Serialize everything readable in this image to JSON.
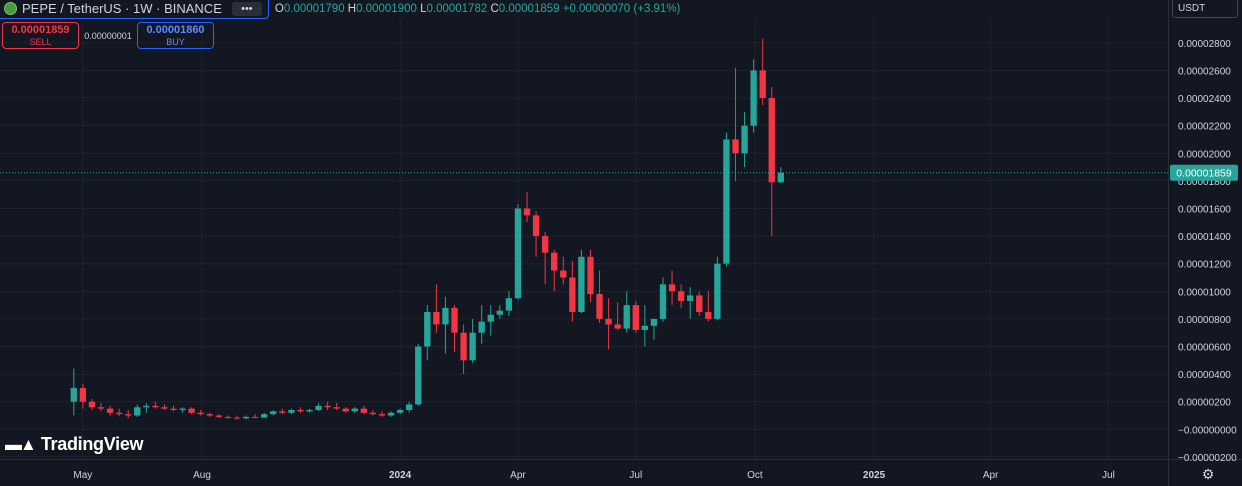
{
  "header": {
    "symbol": "PEPE / TetherUS · 1W · BINANCE",
    "ohlc": {
      "o_label": "O",
      "o_value": "0.00001790",
      "h_label": "H",
      "h_value": "0.00001900",
      "l_label": "L",
      "l_value": "0.00001782",
      "c_label": "C",
      "c_value": "0.00001859",
      "change": "+0.00000070 (+3.91%)"
    }
  },
  "trade": {
    "sell_price": "0.00001859",
    "sell_label": "SELL",
    "spread": "0.00000001",
    "buy_price": "0.00001860",
    "buy_label": "BUY"
  },
  "currency": "USDT",
  "branding": {
    "logo_text": "TradingView"
  },
  "colors": {
    "background": "#131722",
    "up": "#26a69a",
    "down": "#f23645",
    "grid": "#1e222d"
  },
  "chart_data": {
    "type": "candlestick",
    "current_price_label": "0.00001859",
    "y_tick_labels": [
      "0.00002800",
      "0.00002600",
      "0.00002400",
      "0.00002200",
      "0.00002000",
      "0.00001800",
      "0.00001600",
      "0.00001400",
      "0.00001200",
      "0.00001000",
      "0.00000800",
      "0.00000600",
      "0.00000400",
      "0.00000200",
      "−0.00000000",
      "−0.00000200"
    ],
    "y_ticks": [
      2.8e-05,
      2.6e-05,
      2.4e-05,
      2.2e-05,
      2e-05,
      1.8e-05,
      1.6e-05,
      1.4e-05,
      1.2e-05,
      1e-05,
      8e-06,
      6e-06,
      4e-06,
      2e-06,
      0,
      -2e-06
    ],
    "ylim": [
      -2.15e-06,
      2.98e-05
    ],
    "x_tick_labels": [
      {
        "label": "May",
        "date": "2023-05-01",
        "bold": false
      },
      {
        "label": "Aug",
        "date": "2023-08-01",
        "bold": false
      },
      {
        "label": "2024",
        "date": "2024-01-01",
        "bold": true
      },
      {
        "label": "Apr",
        "date": "2024-04-01",
        "bold": false
      },
      {
        "label": "Jul",
        "date": "2024-07-01",
        "bold": false
      },
      {
        "label": "Oct",
        "date": "2024-10-01",
        "bold": false
      },
      {
        "label": "2025",
        "date": "2025-01-01",
        "bold": true
      },
      {
        "label": "Apr",
        "date": "2025-04-01",
        "bold": false
      },
      {
        "label": "Jul",
        "date": "2025-07-01",
        "bold": false
      }
    ],
    "x_range": [
      "2023-02-26",
      "2025-08-16"
    ],
    "interval": "1W",
    "first_candle_date": "2023-04-24",
    "candles": [
      [
        2e-06,
        4.4e-06,
        1e-06,
        3e-06
      ],
      [
        3e-06,
        3.3e-06,
        1.5e-06,
        2e-06
      ],
      [
        2e-06,
        2.2e-06,
        1.4e-06,
        1.6e-06
      ],
      [
        1.6e-06,
        1.9e-06,
        1.3e-06,
        1.5e-06
      ],
      [
        1.5e-06,
        1.7e-06,
        1e-06,
        1.2e-06
      ],
      [
        1.2e-06,
        1.5e-06,
        9.5e-07,
        1.1e-06
      ],
      [
        1.1e-06,
        1.4e-06,
        8e-07,
        1e-06
      ],
      [
        1e-06,
        1.8e-06,
        9e-07,
        1.6e-06
      ],
      [
        1.6e-06,
        1.9e-06,
        1.2e-06,
        1.7e-06
      ],
      [
        1.7e-06,
        2e-06,
        1.5e-06,
        1.6e-06
      ],
      [
        1.6e-06,
        1.8e-06,
        1.4e-06,
        1.5e-06
      ],
      [
        1.5e-06,
        1.7e-06,
        1.3e-06,
        1.4e-06
      ],
      [
        1.4e-06,
        1.6e-06,
        1.2e-06,
        1.5e-06
      ],
      [
        1.5e-06,
        1.6e-06,
        1.1e-06,
        1.2e-06
      ],
      [
        1.2e-06,
        1.4e-06,
        1e-06,
        1.1e-06
      ],
      [
        1.1e-06,
        1.2e-06,
        9e-07,
        1e-06
      ],
      [
        1e-06,
        1.1e-06,
        8e-07,
        9e-07
      ],
      [
        9e-07,
        1e-06,
        7.5e-07,
        8.5e-07
      ],
      [
        8.5e-07,
        1e-06,
        7e-07,
        8e-07
      ],
      [
        8e-07,
        1e-06,
        7e-07,
        9e-07
      ],
      [
        9e-07,
        1.1e-06,
        8e-07,
        8.5e-07
      ],
      [
        8.5e-07,
        1.2e-06,
        8e-07,
        1.1e-06
      ],
      [
        1.1e-06,
        1.4e-06,
        1e-06,
        1.3e-06
      ],
      [
        1.3e-06,
        1.5e-06,
        1.1e-06,
        1.2e-06
      ],
      [
        1.2e-06,
        1.5e-06,
        1.1e-06,
        1.4e-06
      ],
      [
        1.4e-06,
        1.6e-06,
        1.2e-06,
        1.3e-06
      ],
      [
        1.3e-06,
        1.5e-06,
        1.2e-06,
        1.4e-06
      ],
      [
        1.4e-06,
        1.9e-06,
        1.3e-06,
        1.7e-06
      ],
      [
        1.7e-06,
        2e-06,
        1.4e-06,
        1.6e-06
      ],
      [
        1.6e-06,
        1.9e-06,
        1.4e-06,
        1.5e-06
      ],
      [
        1.5e-06,
        1.6e-06,
        1.2e-06,
        1.3e-06
      ],
      [
        1.3e-06,
        1.6e-06,
        1.2e-06,
        1.5e-06
      ],
      [
        1.5e-06,
        1.7e-06,
        1.1e-06,
        1.2e-06
      ],
      [
        1.2e-06,
        1.4e-06,
        1e-06,
        1.1e-06
      ],
      [
        1.1e-06,
        1.3e-06,
        9e-07,
        1e-06
      ],
      [
        1e-06,
        1.3e-06,
        9e-07,
        1.2e-06
      ],
      [
        1.2e-06,
        1.5e-06,
        1.1e-06,
        1.4e-06
      ],
      [
        1.4e-06,
        2e-06,
        1.2e-06,
        1.8e-06
      ],
      [
        1.8e-06,
        6.2e-06,
        1.7e-06,
        6e-06
      ],
      [
        6e-06,
        9e-06,
        5e-06,
        8.5e-06
      ],
      [
        8.5e-06,
        1.05e-05,
        7e-06,
        7.6e-06
      ],
      [
        7.6e-06,
        9.6e-06,
        5.5e-06,
        8.8e-06
      ],
      [
        8.8e-06,
        9e-06,
        5.6e-06,
        7e-06
      ],
      [
        7e-06,
        7.6e-06,
        4e-06,
        5e-06
      ],
      [
        5e-06,
        8e-06,
        4.8e-06,
        7e-06
      ],
      [
        7e-06,
        9e-06,
        6.2e-06,
        7.8e-06
      ],
      [
        7.8e-06,
        9e-06,
        6.8e-06,
        8.3e-06
      ],
      [
        8.3e-06,
        9e-06,
        8e-06,
        8.6e-06
      ],
      [
        8.6e-06,
        1e-05,
        8.2e-06,
        9.5e-06
      ],
      [
        9.5e-06,
        1.63e-05,
        9.4e-06,
        1.6e-05
      ],
      [
        1.6e-05,
        1.72e-05,
        1.5e-05,
        1.55e-05
      ],
      [
        1.55e-05,
        1.58e-05,
        1.25e-05,
        1.4e-05
      ],
      [
        1.4e-05,
        1.43e-05,
        1.05e-05,
        1.28e-05
      ],
      [
        1.28e-05,
        1.3e-05,
        1e-05,
        1.15e-05
      ],
      [
        1.15e-05,
        1.25e-05,
        1.05e-05,
        1.1e-05
      ],
      [
        1.1e-05,
        1.22e-05,
        7.8e-06,
        8.5e-06
      ],
      [
        8.5e-06,
        1.3e-05,
        8.4e-06,
        1.25e-05
      ],
      [
        1.25e-05,
        1.3e-05,
        9.2e-06,
        9.8e-06
      ],
      [
        9.8e-06,
        1.15e-05,
        7.7e-06,
        8e-06
      ],
      [
        8e-06,
        9.5e-06,
        5.8e-06,
        7.6e-06
      ],
      [
        7.6e-06,
        9.2e-06,
        7.2e-06,
        7.3e-06
      ],
      [
        7.3e-06,
        1e-05,
        7e-06,
        9e-06
      ],
      [
        9e-06,
        9.3e-06,
        7e-06,
        7.2e-06
      ],
      [
        7.2e-06,
        9e-06,
        6e-06,
        7.5e-06
      ],
      [
        7.5e-06,
        8e-06,
        6.5e-06,
        8e-06
      ],
      [
        8e-06,
        1.1e-05,
        7.8e-06,
        1.05e-05
      ],
      [
        1.05e-05,
        1.15e-05,
        9e-06,
        1e-05
      ],
      [
        1e-05,
        1.05e-05,
        8.8e-06,
        9.3e-06
      ],
      [
        9.3e-06,
        1.03e-05,
        8e-06,
        9.7e-06
      ],
      [
        9.7e-06,
        1e-05,
        8.2e-06,
        8.5e-06
      ],
      [
        8.5e-06,
        1e-05,
        7.8e-06,
        8e-06
      ],
      [
        8e-06,
        1.25e-05,
        7.9e-06,
        1.2e-05
      ],
      [
        1.2e-05,
        2.15e-05,
        1.18e-05,
        2.1e-05
      ],
      [
        2.1e-05,
        2.62e-05,
        1.8e-05,
        2e-05
      ],
      [
        2e-05,
        2.3e-05,
        1.9e-05,
        2.2e-05
      ],
      [
        2.2e-05,
        2.68e-05,
        2.15e-05,
        2.6e-05
      ],
      [
        2.6e-05,
        2.83e-05,
        2.35e-05,
        2.4e-05
      ],
      [
        2.4e-05,
        2.48e-05,
        1.4e-05,
        1.79e-05
      ],
      [
        1.79e-05,
        1.9e-05,
        1.782e-05,
        1.859e-05
      ]
    ]
  }
}
